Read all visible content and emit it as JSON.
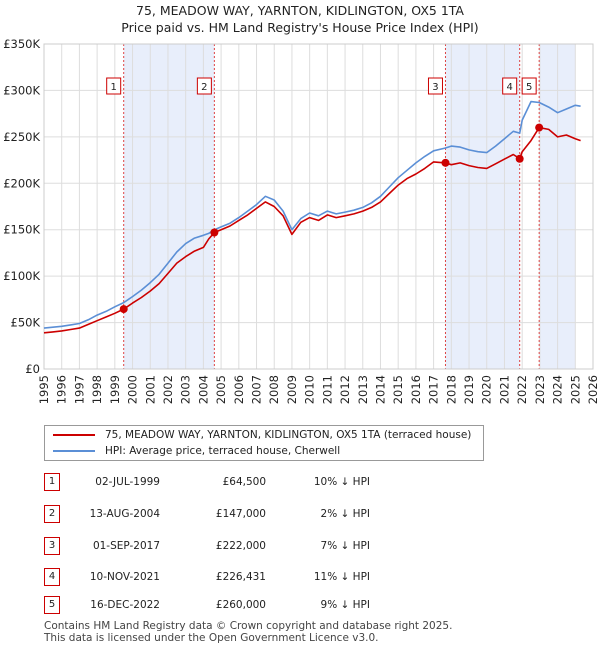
{
  "chart_data": {
    "type": "line",
    "title": "75, MEADOW WAY, YARNTON, KIDLINGTON, OX5 1TA",
    "subtitle": "Price paid vs. HM Land Registry's House Price Index (HPI)",
    "xlabel": "",
    "ylabel": "",
    "xlim": [
      1995,
      2026
    ],
    "ylim": [
      0,
      350000
    ],
    "x_ticks": [
      "1995",
      "1996",
      "1997",
      "1998",
      "1999",
      "2000",
      "2001",
      "2002",
      "2003",
      "2004",
      "2005",
      "2006",
      "2007",
      "2008",
      "2009",
      "2010",
      "2011",
      "2012",
      "2013",
      "2014",
      "2015",
      "2016",
      "2017",
      "2018",
      "2019",
      "2020",
      "2021",
      "2022",
      "2023",
      "2024",
      "2025",
      "2026"
    ],
    "y_ticks": [
      {
        "value": 0,
        "label": "£0"
      },
      {
        "value": 50000,
        "label": "£50K"
      },
      {
        "value": 100000,
        "label": "£100K"
      },
      {
        "value": 150000,
        "label": "£150K"
      },
      {
        "value": 200000,
        "label": "£200K"
      },
      {
        "value": 250000,
        "label": "£250K"
      },
      {
        "value": 300000,
        "label": "£300K"
      },
      {
        "value": 350000,
        "label": "£350K"
      }
    ],
    "grid": true,
    "shaded_periods": [
      [
        1999.5,
        2004.62
      ],
      [
        2017.67,
        2021.86
      ],
      [
        2022.96,
        2025.0
      ]
    ],
    "series": [
      {
        "name": "75, MEADOW WAY, YARNTON, KIDLINGTON, OX5 1TA (terraced house)",
        "color": "#cc0000",
        "x": [
          1995.0,
          1995.5,
          1996.0,
          1996.5,
          1997.0,
          1997.5,
          1998.0,
          1998.5,
          1999.0,
          1999.5,
          2000.0,
          2000.5,
          2001.0,
          2001.5,
          2002.0,
          2002.5,
          2003.0,
          2003.5,
          2004.0,
          2004.3,
          2004.62,
          2005.0,
          2005.5,
          2006.0,
          2006.5,
          2007.0,
          2007.5,
          2008.0,
          2008.5,
          2009.0,
          2009.5,
          2010.0,
          2010.5,
          2011.0,
          2011.5,
          2012.0,
          2012.5,
          2013.0,
          2013.5,
          2014.0,
          2014.5,
          2015.0,
          2015.5,
          2016.0,
          2016.5,
          2017.0,
          2017.67,
          2018.0,
          2018.5,
          2019.0,
          2019.5,
          2020.0,
          2020.5,
          2021.0,
          2021.5,
          2021.86,
          2022.0,
          2022.5,
          2022.96,
          2023.5,
          2024.0,
          2024.5,
          2025.0,
          2025.3
        ],
        "y": [
          39000,
          40000,
          41000,
          42500,
          44000,
          48000,
          52000,
          56000,
          60000,
          64500,
          71000,
          77000,
          84000,
          92000,
          103000,
          114000,
          121000,
          127000,
          131000,
          140000,
          147000,
          150000,
          154000,
          160000,
          166000,
          173000,
          180000,
          175000,
          165000,
          145000,
          158000,
          163000,
          160000,
          166000,
          163000,
          165000,
          167000,
          170000,
          174000,
          180000,
          189000,
          198000,
          205000,
          210000,
          216000,
          223000,
          222000,
          220000,
          222000,
          219000,
          217000,
          216000,
          221000,
          226000,
          231000,
          226431,
          234000,
          246000,
          260000,
          258000,
          250000,
          252000,
          248000,
          246000
        ]
      },
      {
        "name": "HPI: Average price, terraced house, Cherwell",
        "color": "#5b8fd6",
        "x": [
          1995.0,
          1995.5,
          1996.0,
          1996.5,
          1997.0,
          1997.5,
          1998.0,
          1998.5,
          1999.0,
          1999.5,
          2000.0,
          2000.5,
          2001.0,
          2001.5,
          2002.0,
          2002.5,
          2003.0,
          2003.5,
          2004.0,
          2004.3,
          2004.62,
          2005.0,
          2005.5,
          2006.0,
          2006.5,
          2007.0,
          2007.5,
          2008.0,
          2008.5,
          2009.0,
          2009.5,
          2010.0,
          2010.5,
          2011.0,
          2011.5,
          2012.0,
          2012.5,
          2013.0,
          2013.5,
          2014.0,
          2014.5,
          2015.0,
          2015.5,
          2016.0,
          2016.5,
          2017.0,
          2017.67,
          2018.0,
          2018.5,
          2019.0,
          2019.5,
          2020.0,
          2020.5,
          2021.0,
          2021.5,
          2021.86,
          2022.0,
          2022.5,
          2022.96,
          2023.5,
          2024.0,
          2024.5,
          2025.0,
          2025.3
        ],
        "y": [
          44000,
          45000,
          46000,
          47500,
          49000,
          53000,
          58000,
          62000,
          67000,
          71500,
          78000,
          85000,
          93000,
          102000,
          114000,
          126000,
          135000,
          141000,
          144000,
          146000,
          150000,
          153000,
          157000,
          163000,
          170000,
          177000,
          186000,
          182000,
          170000,
          150000,
          162000,
          168000,
          165000,
          170000,
          167000,
          169000,
          171000,
          174000,
          179000,
          186000,
          196000,
          206000,
          214000,
          222000,
          229000,
          235000,
          238000,
          240000,
          239000,
          236000,
          234000,
          233000,
          240000,
          248000,
          256000,
          254000,
          268000,
          288000,
          287000,
          282000,
          276000,
          280000,
          284000,
          283000
        ]
      }
    ],
    "sales": [
      {
        "num": "1",
        "x": 1999.5,
        "y": 64500,
        "date": "02-JUL-1999",
        "price": "£64,500",
        "hpi": "10% ↓ HPI"
      },
      {
        "num": "2",
        "x": 2004.62,
        "y": 147000,
        "date": "13-AUG-2004",
        "price": "£147,000",
        "hpi": "2% ↓ HPI"
      },
      {
        "num": "3",
        "x": 2017.67,
        "y": 222000,
        "date": "01-SEP-2017",
        "price": "£222,000",
        "hpi": "7% ↓ HPI"
      },
      {
        "num": "4",
        "x": 2021.86,
        "y": 226431,
        "date": "10-NOV-2021",
        "price": "£226,431",
        "hpi": "11% ↓ HPI"
      },
      {
        "num": "5",
        "x": 2022.96,
        "y": 260000,
        "date": "16-DEC-2022",
        "price": "£260,000",
        "hpi": "9% ↓ HPI"
      }
    ]
  },
  "legend": {
    "property_label": "75, MEADOW WAY, YARNTON, KIDLINGTON, OX5 1TA (terraced house)",
    "hpi_label": "HPI: Average price, terraced house, Cherwell",
    "property_color": "#cc0000",
    "hpi_color": "#5b8fd6"
  },
  "footer": {
    "line1": "Contains HM Land Registry data © Crown copyright and database right 2025.",
    "line2": "This data is licensed under the Open Government Licence v3.0."
  }
}
